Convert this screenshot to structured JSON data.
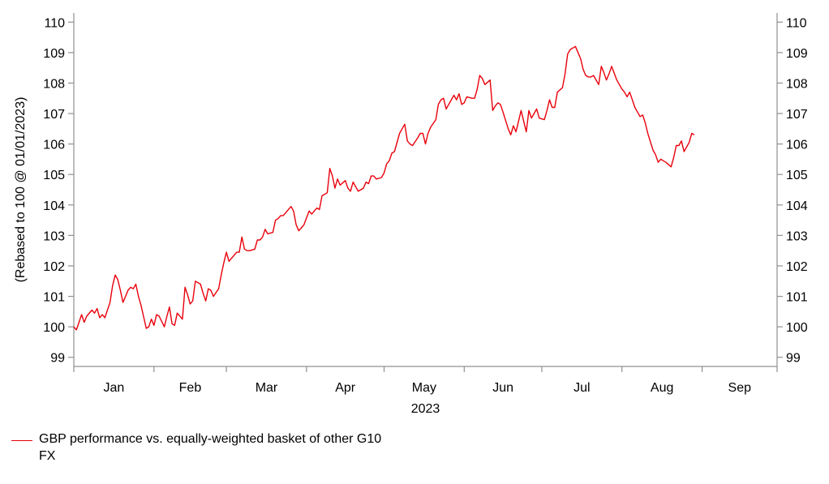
{
  "chart_data": {
    "type": "line",
    "ylabel": "(Rebased to 100 @ 01/01/2023)",
    "xlabel": "2023",
    "ylim": [
      98.7,
      110.3
    ],
    "yticks": [
      99,
      100,
      101,
      102,
      103,
      104,
      105,
      106,
      107,
      108,
      109,
      110
    ],
    "ytick_labels": [
      "99",
      "100",
      "101",
      "102",
      "103",
      "104",
      "105",
      "106",
      "107",
      "108",
      "109",
      "110"
    ],
    "xlim": [
      "2023-01-01",
      "2023-09-30"
    ],
    "month_boundaries": [
      "2023-01-01",
      "2023-02-01",
      "2023-03-01",
      "2023-04-01",
      "2023-05-01",
      "2023-06-01",
      "2023-07-01",
      "2023-08-01",
      "2023-09-01",
      "2023-09-30"
    ],
    "month_labels": [
      "Jan",
      "Feb",
      "Mar",
      "Apr",
      "May",
      "Jun",
      "Jul",
      "Aug",
      "Sep"
    ],
    "grid": false,
    "legend_position": "bottom-left",
    "series": [
      {
        "name": "GBP performance vs. equally-weighted basket of other G10 FX",
        "color": "#e8000b",
        "points": [
          [
            "2023-01-01",
            100.0
          ],
          [
            "2023-01-02",
            99.9
          ],
          [
            "2023-01-03",
            100.15
          ],
          [
            "2023-01-04",
            100.4
          ],
          [
            "2023-01-05",
            100.15
          ],
          [
            "2023-01-06",
            100.35
          ],
          [
            "2023-01-08",
            100.55
          ],
          [
            "2023-01-09",
            100.45
          ],
          [
            "2023-01-10",
            100.6
          ],
          [
            "2023-01-11",
            100.3
          ],
          [
            "2023-01-12",
            100.4
          ],
          [
            "2023-01-13",
            100.3
          ],
          [
            "2023-01-15",
            100.8
          ],
          [
            "2023-01-16",
            101.35
          ],
          [
            "2023-01-17",
            101.7
          ],
          [
            "2023-01-18",
            101.55
          ],
          [
            "2023-01-19",
            101.2
          ],
          [
            "2023-01-20",
            100.8
          ],
          [
            "2023-01-22",
            101.2
          ],
          [
            "2023-01-23",
            101.3
          ],
          [
            "2023-01-24",
            101.25
          ],
          [
            "2023-01-25",
            101.4
          ],
          [
            "2023-01-26",
            101.0
          ],
          [
            "2023-01-27",
            100.7
          ],
          [
            "2023-01-29",
            99.95
          ],
          [
            "2023-01-30",
            100.0
          ],
          [
            "2023-01-31",
            100.25
          ],
          [
            "2023-02-01",
            100.05
          ],
          [
            "2023-02-02",
            100.4
          ],
          [
            "2023-02-03",
            100.35
          ],
          [
            "2023-02-05",
            100.0
          ],
          [
            "2023-02-06",
            100.35
          ],
          [
            "2023-02-07",
            100.65
          ],
          [
            "2023-02-08",
            100.1
          ],
          [
            "2023-02-09",
            100.05
          ],
          [
            "2023-02-10",
            100.45
          ],
          [
            "2023-02-12",
            100.25
          ],
          [
            "2023-02-13",
            101.3
          ],
          [
            "2023-02-14",
            101.05
          ],
          [
            "2023-02-15",
            100.75
          ],
          [
            "2023-02-16",
            100.85
          ],
          [
            "2023-02-17",
            101.5
          ],
          [
            "2023-02-19",
            101.4
          ],
          [
            "2023-02-20",
            101.1
          ],
          [
            "2023-02-21",
            100.85
          ],
          [
            "2023-02-22",
            101.25
          ],
          [
            "2023-02-23",
            101.2
          ],
          [
            "2023-02-24",
            101.0
          ],
          [
            "2023-02-26",
            101.25
          ],
          [
            "2023-02-27",
            101.7
          ],
          [
            "2023-02-28",
            102.1
          ],
          [
            "2023-03-01",
            102.45
          ],
          [
            "2023-03-02",
            102.15
          ],
          [
            "2023-03-03",
            102.25
          ],
          [
            "2023-03-05",
            102.45
          ],
          [
            "2023-03-06",
            102.45
          ],
          [
            "2023-03-07",
            102.95
          ],
          [
            "2023-03-08",
            102.55
          ],
          [
            "2023-03-09",
            102.5
          ],
          [
            "2023-03-10",
            102.5
          ],
          [
            "2023-03-12",
            102.55
          ],
          [
            "2023-03-13",
            102.85
          ],
          [
            "2023-03-14",
            102.85
          ],
          [
            "2023-03-15",
            102.95
          ],
          [
            "2023-03-16",
            103.2
          ],
          [
            "2023-03-17",
            103.05
          ],
          [
            "2023-03-19",
            103.1
          ],
          [
            "2023-03-20",
            103.5
          ],
          [
            "2023-03-21",
            103.55
          ],
          [
            "2023-03-22",
            103.65
          ],
          [
            "2023-03-23",
            103.65
          ],
          [
            "2023-03-24",
            103.75
          ],
          [
            "2023-03-26",
            103.95
          ],
          [
            "2023-03-27",
            103.8
          ],
          [
            "2023-03-28",
            103.35
          ],
          [
            "2023-03-29",
            103.15
          ],
          [
            "2023-03-30",
            103.25
          ],
          [
            "2023-03-31",
            103.35
          ],
          [
            "2023-04-02",
            103.8
          ],
          [
            "2023-04-03",
            103.7
          ],
          [
            "2023-04-04",
            103.8
          ],
          [
            "2023-04-05",
            103.9
          ],
          [
            "2023-04-06",
            103.85
          ],
          [
            "2023-04-07",
            104.3
          ],
          [
            "2023-04-09",
            104.4
          ],
          [
            "2023-04-10",
            105.2
          ],
          [
            "2023-04-11",
            104.95
          ],
          [
            "2023-04-12",
            104.55
          ],
          [
            "2023-04-13",
            104.85
          ],
          [
            "2023-04-14",
            104.65
          ],
          [
            "2023-04-16",
            104.8
          ],
          [
            "2023-04-17",
            104.55
          ],
          [
            "2023-04-18",
            104.45
          ],
          [
            "2023-04-19",
            104.75
          ],
          [
            "2023-04-20",
            104.6
          ],
          [
            "2023-04-21",
            104.45
          ],
          [
            "2023-04-23",
            104.55
          ],
          [
            "2023-04-24",
            104.75
          ],
          [
            "2023-04-25",
            104.7
          ],
          [
            "2023-04-26",
            104.95
          ],
          [
            "2023-04-27",
            104.95
          ],
          [
            "2023-04-28",
            104.85
          ],
          [
            "2023-04-30",
            104.9
          ],
          [
            "2023-05-01",
            105.05
          ],
          [
            "2023-05-02",
            105.35
          ],
          [
            "2023-05-03",
            105.45
          ],
          [
            "2023-05-04",
            105.7
          ],
          [
            "2023-05-05",
            105.75
          ],
          [
            "2023-05-07",
            106.35
          ],
          [
            "2023-05-08",
            106.5
          ],
          [
            "2023-05-09",
            106.65
          ],
          [
            "2023-05-10",
            106.1
          ],
          [
            "2023-05-11",
            106.0
          ],
          [
            "2023-05-12",
            105.95
          ],
          [
            "2023-05-14",
            106.2
          ],
          [
            "2023-05-15",
            106.35
          ],
          [
            "2023-05-16",
            106.35
          ],
          [
            "2023-05-17",
            106.0
          ],
          [
            "2023-05-18",
            106.35
          ],
          [
            "2023-05-19",
            106.55
          ],
          [
            "2023-05-21",
            106.8
          ],
          [
            "2023-05-22",
            107.3
          ],
          [
            "2023-05-23",
            107.45
          ],
          [
            "2023-05-24",
            107.5
          ],
          [
            "2023-05-25",
            107.15
          ],
          [
            "2023-05-26",
            107.3
          ],
          [
            "2023-05-28",
            107.6
          ],
          [
            "2023-05-29",
            107.45
          ],
          [
            "2023-05-30",
            107.65
          ],
          [
            "2023-05-31",
            107.3
          ],
          [
            "2023-06-01",
            107.35
          ],
          [
            "2023-06-02",
            107.55
          ],
          [
            "2023-06-04",
            107.5
          ],
          [
            "2023-06-05",
            107.5
          ],
          [
            "2023-06-06",
            107.8
          ],
          [
            "2023-06-07",
            108.25
          ],
          [
            "2023-06-08",
            108.15
          ],
          [
            "2023-06-09",
            107.95
          ],
          [
            "2023-06-11",
            108.1
          ],
          [
            "2023-06-12",
            107.1
          ],
          [
            "2023-06-13",
            107.25
          ],
          [
            "2023-06-14",
            107.35
          ],
          [
            "2023-06-15",
            107.3
          ],
          [
            "2023-06-16",
            107.05
          ],
          [
            "2023-06-18",
            106.5
          ],
          [
            "2023-06-19",
            106.3
          ],
          [
            "2023-06-20",
            106.6
          ],
          [
            "2023-06-21",
            106.4
          ],
          [
            "2023-06-22",
            106.75
          ],
          [
            "2023-06-23",
            107.1
          ],
          [
            "2023-06-25",
            106.4
          ],
          [
            "2023-06-26",
            107.1
          ],
          [
            "2023-06-27",
            106.85
          ],
          [
            "2023-06-28",
            107.0
          ],
          [
            "2023-06-29",
            107.15
          ],
          [
            "2023-06-30",
            106.85
          ],
          [
            "2023-07-02",
            106.8
          ],
          [
            "2023-07-03",
            107.1
          ],
          [
            "2023-07-04",
            107.45
          ],
          [
            "2023-07-05",
            107.2
          ],
          [
            "2023-07-06",
            107.2
          ],
          [
            "2023-07-07",
            107.7
          ],
          [
            "2023-07-09",
            107.85
          ],
          [
            "2023-07-10",
            108.3
          ],
          [
            "2023-07-11",
            108.95
          ],
          [
            "2023-07-12",
            109.1
          ],
          [
            "2023-07-13",
            109.15
          ],
          [
            "2023-07-14",
            109.2
          ],
          [
            "2023-07-16",
            108.8
          ],
          [
            "2023-07-17",
            108.45
          ],
          [
            "2023-07-18",
            108.25
          ],
          [
            "2023-07-19",
            108.2
          ],
          [
            "2023-07-20",
            108.2
          ],
          [
            "2023-07-21",
            108.25
          ],
          [
            "2023-07-23",
            107.95
          ],
          [
            "2023-07-24",
            108.55
          ],
          [
            "2023-07-25",
            108.35
          ],
          [
            "2023-07-26",
            108.1
          ],
          [
            "2023-07-27",
            108.3
          ],
          [
            "2023-07-28",
            108.55
          ],
          [
            "2023-07-30",
            108.1
          ],
          [
            "2023-07-31",
            107.95
          ],
          [
            "2023-08-01",
            107.8
          ],
          [
            "2023-08-02",
            107.7
          ],
          [
            "2023-08-03",
            107.55
          ],
          [
            "2023-08-04",
            107.7
          ],
          [
            "2023-08-06",
            107.2
          ],
          [
            "2023-08-07",
            107.05
          ],
          [
            "2023-08-08",
            106.9
          ],
          [
            "2023-08-09",
            106.95
          ],
          [
            "2023-08-10",
            106.7
          ],
          [
            "2023-08-11",
            106.35
          ],
          [
            "2023-08-13",
            105.8
          ],
          [
            "2023-08-14",
            105.65
          ],
          [
            "2023-08-15",
            105.4
          ],
          [
            "2023-08-16",
            105.5
          ],
          [
            "2023-08-17",
            105.45
          ],
          [
            "2023-08-18",
            105.4
          ],
          [
            "2023-08-20",
            105.25
          ],
          [
            "2023-08-21",
            105.55
          ],
          [
            "2023-08-22",
            105.95
          ],
          [
            "2023-08-23",
            105.95
          ],
          [
            "2023-08-24",
            106.1
          ],
          [
            "2023-08-25",
            105.75
          ],
          [
            "2023-08-27",
            106.05
          ],
          [
            "2023-08-28",
            106.35
          ],
          [
            "2023-08-29",
            106.3
          ]
        ]
      }
    ]
  }
}
